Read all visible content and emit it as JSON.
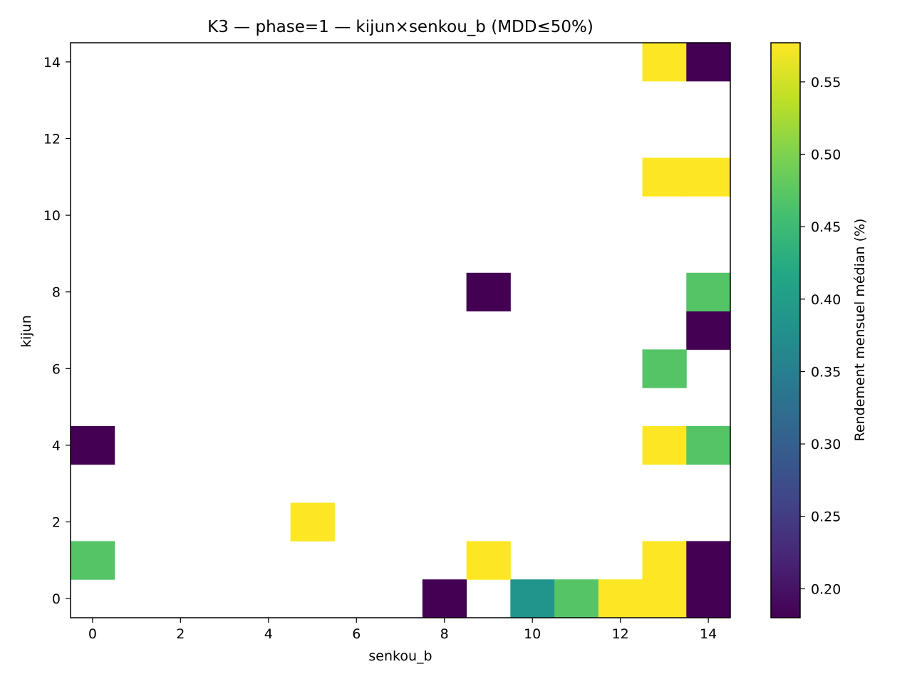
{
  "chart_data": {
    "type": "heatmap",
    "title": "K3 — phase=1 — kijun×senkou_b (MDD≤50%)",
    "xlabel": "senkou_b",
    "ylabel": "kijun",
    "xlim": [
      -0.5,
      14.5
    ],
    "ylim": [
      -0.5,
      14.5
    ],
    "x_ticks": [
      0,
      2,
      4,
      6,
      8,
      10,
      12,
      14
    ],
    "y_ticks": [
      0,
      2,
      4,
      6,
      8,
      10,
      12,
      14
    ],
    "colormap": "viridis",
    "colorbar": {
      "label": "Rendement mensuel médian (%)",
      "range": [
        0.18,
        0.577
      ],
      "ticks": [
        0.2,
        0.25,
        0.3,
        0.35,
        0.4,
        0.45,
        0.5,
        0.55
      ],
      "tick_labels": [
        "0.20",
        "0.25",
        "0.30",
        "0.35",
        "0.40",
        "0.45",
        "0.50",
        "0.55"
      ]
    },
    "cells": [
      {
        "x": 8,
        "y": 0,
        "value": 0.18
      },
      {
        "x": 10,
        "y": 0,
        "value": 0.385
      },
      {
        "x": 11,
        "y": 0,
        "value": 0.47
      },
      {
        "x": 12,
        "y": 0,
        "value": 0.577
      },
      {
        "x": 13,
        "y": 0,
        "value": 0.577
      },
      {
        "x": 14,
        "y": 0,
        "value": 0.18
      },
      {
        "x": 0,
        "y": 1,
        "value": 0.47
      },
      {
        "x": 9,
        "y": 1,
        "value": 0.577
      },
      {
        "x": 13,
        "y": 1,
        "value": 0.577
      },
      {
        "x": 14,
        "y": 1,
        "value": 0.18
      },
      {
        "x": 5,
        "y": 2,
        "value": 0.577
      },
      {
        "x": 0,
        "y": 4,
        "value": 0.18
      },
      {
        "x": 13,
        "y": 4,
        "value": 0.577
      },
      {
        "x": 14,
        "y": 4,
        "value": 0.47
      },
      {
        "x": 13,
        "y": 6,
        "value": 0.47
      },
      {
        "x": 14,
        "y": 7,
        "value": 0.18
      },
      {
        "x": 9,
        "y": 8,
        "value": 0.18
      },
      {
        "x": 14,
        "y": 8,
        "value": 0.47
      },
      {
        "x": 13,
        "y": 11,
        "value": 0.577
      },
      {
        "x": 14,
        "y": 11,
        "value": 0.577
      },
      {
        "x": 13,
        "y": 14,
        "value": 0.577
      },
      {
        "x": 14,
        "y": 14,
        "value": 0.18
      }
    ]
  }
}
